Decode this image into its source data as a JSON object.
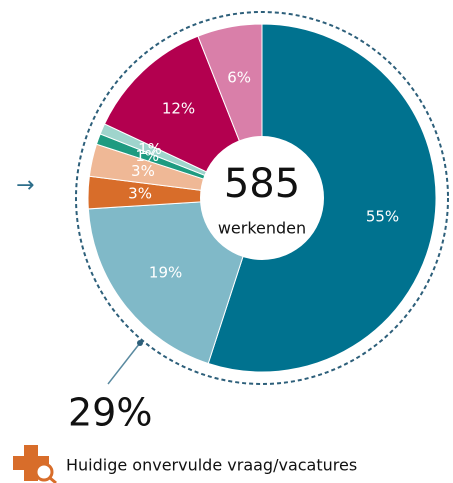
{
  "chart_data": {
    "type": "donut",
    "values": [
      55,
      19,
      3,
      3,
      1,
      1,
      12,
      6
    ],
    "value_labels": [
      "55%",
      "19%",
      "3%",
      "3%",
      "1%",
      "1%",
      "12%",
      "6%"
    ],
    "colors": [
      "#00728f",
      "#80b9c8",
      "#d86d2a",
      "#efb896",
      "#1e9b80",
      "#9fd4cc",
      "#b3004f",
      "#d97fa9"
    ],
    "center_value": "585",
    "center_label": "werkenden",
    "annotation": "29%",
    "legend": "Huidige onvervulde vraag/vacatures"
  }
}
